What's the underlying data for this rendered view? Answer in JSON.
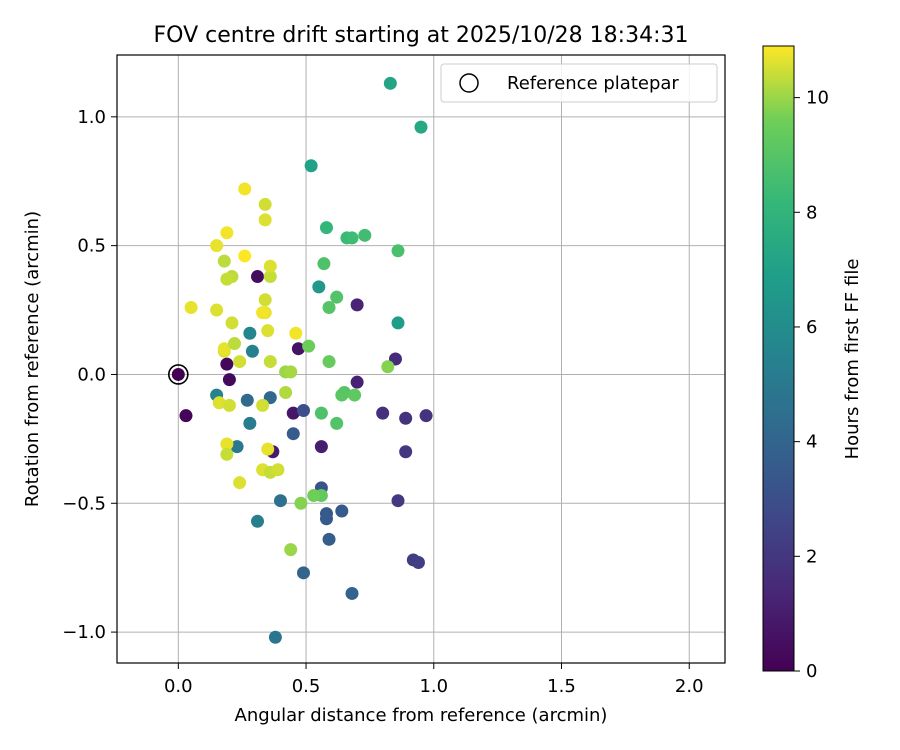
{
  "chart_data": {
    "type": "scatter",
    "title": "FOV centre drift starting at 2025/10/28 18:34:31",
    "xlabel": "Angular distance from reference (arcmin)",
    "ylabel": "Rotation from reference (arcmin)",
    "xlim": [
      -0.24,
      2.14
    ],
    "ylim": [
      -1.12,
      1.24
    ],
    "xticks": [
      0.0,
      0.5,
      1.0,
      1.5,
      2.0
    ],
    "xtick_labels": [
      "0.0",
      "0.5",
      "1.0",
      "1.5",
      "2.0"
    ],
    "yticks": [
      -1.0,
      -0.5,
      0.0,
      0.5,
      1.0
    ],
    "ytick_labels": [
      "−1.0",
      "−0.5",
      "0.0",
      "0.5",
      "1.0"
    ],
    "grid": true,
    "legend": {
      "position": "top-right",
      "entries": [
        "Reference platepar"
      ]
    },
    "reference_point": {
      "x": 0.0,
      "y": 0.0,
      "label": "Reference platepar"
    },
    "colorbar": {
      "label": "Hours from first FF file",
      "min": 0,
      "max": 10.9,
      "ticks": [
        0,
        2,
        4,
        6,
        8,
        10
      ],
      "tick_labels": [
        "0",
        "2",
        "4",
        "6",
        "8",
        "10"
      ],
      "colormap": "viridis"
    },
    "series": [
      {
        "name": "FF files",
        "points": [
          {
            "x": 0.0,
            "y": 0.0,
            "hours": 0.0
          },
          {
            "x": 0.03,
            "y": -0.16,
            "hours": 0.1
          },
          {
            "x": 0.19,
            "y": 0.04,
            "hours": 0.2
          },
          {
            "x": 0.2,
            "y": -0.02,
            "hours": 0.3
          },
          {
            "x": 0.31,
            "y": 0.38,
            "hours": 0.4
          },
          {
            "x": 0.47,
            "y": 0.1,
            "hours": 0.6
          },
          {
            "x": 0.45,
            "y": -0.15,
            "hours": 0.8
          },
          {
            "x": 0.37,
            "y": -0.3,
            "hours": 0.9
          },
          {
            "x": 0.56,
            "y": -0.28,
            "hours": 1.0
          },
          {
            "x": 0.7,
            "y": -0.03,
            "hours": 1.2
          },
          {
            "x": 0.7,
            "y": 0.27,
            "hours": 1.3
          },
          {
            "x": 0.85,
            "y": 0.06,
            "hours": 1.5
          },
          {
            "x": 0.8,
            "y": -0.15,
            "hours": 1.7
          },
          {
            "x": 0.89,
            "y": -0.17,
            "hours": 1.8
          },
          {
            "x": 0.97,
            "y": -0.16,
            "hours": 1.9
          },
          {
            "x": 0.89,
            "y": -0.3,
            "hours": 2.0
          },
          {
            "x": 0.86,
            "y": -0.49,
            "hours": 2.1
          },
          {
            "x": 0.92,
            "y": -0.72,
            "hours": 2.2
          },
          {
            "x": 0.94,
            "y": -0.73,
            "hours": 2.3
          },
          {
            "x": 0.49,
            "y": -0.14,
            "hours": 3.0
          },
          {
            "x": 0.56,
            "y": -0.44,
            "hours": 3.2
          },
          {
            "x": 0.58,
            "y": -0.54,
            "hours": 3.4
          },
          {
            "x": 0.58,
            "y": -0.56,
            "hours": 3.5
          },
          {
            "x": 0.64,
            "y": -0.53,
            "hours": 3.5
          },
          {
            "x": 0.45,
            "y": -0.23,
            "hours": 3.6
          },
          {
            "x": 0.59,
            "y": -0.64,
            "hours": 3.7
          },
          {
            "x": 0.68,
            "y": -0.85,
            "hours": 3.9
          },
          {
            "x": 0.49,
            "y": -0.77,
            "hours": 4.0
          },
          {
            "x": 0.36,
            "y": -0.09,
            "hours": 4.2
          },
          {
            "x": 0.27,
            "y": -0.1,
            "hours": 4.3
          },
          {
            "x": 0.4,
            "y": -0.49,
            "hours": 4.6
          },
          {
            "x": 0.38,
            "y": -1.02,
            "hours": 4.8
          },
          {
            "x": 0.23,
            "y": -0.28,
            "hours": 4.9
          },
          {
            "x": 0.28,
            "y": -0.19,
            "hours": 5.1
          },
          {
            "x": 0.31,
            "y": -0.57,
            "hours": 5.3
          },
          {
            "x": 0.29,
            "y": 0.09,
            "hours": 5.4
          },
          {
            "x": 0.15,
            "y": -0.08,
            "hours": 5.5
          },
          {
            "x": 0.28,
            "y": 0.16,
            "hours": 5.6
          },
          {
            "x": 0.55,
            "y": 0.34,
            "hours": 6.6
          },
          {
            "x": 0.86,
            "y": 0.2,
            "hours": 6.8
          },
          {
            "x": 0.52,
            "y": 0.81,
            "hours": 7.0
          },
          {
            "x": 0.83,
            "y": 1.13,
            "hours": 7.2
          },
          {
            "x": 0.95,
            "y": 0.96,
            "hours": 7.4
          },
          {
            "x": 0.58,
            "y": 0.57,
            "hours": 8.1
          },
          {
            "x": 0.66,
            "y": 0.53,
            "hours": 8.3
          },
          {
            "x": 0.68,
            "y": 0.53,
            "hours": 8.4
          },
          {
            "x": 0.73,
            "y": 0.54,
            "hours": 8.5
          },
          {
            "x": 0.86,
            "y": 0.48,
            "hours": 8.7
          },
          {
            "x": 0.57,
            "y": 0.43,
            "hours": 8.8
          },
          {
            "x": 0.62,
            "y": 0.3,
            "hours": 8.9
          },
          {
            "x": 0.59,
            "y": 0.26,
            "hours": 9.0
          },
          {
            "x": 0.56,
            "y": -0.15,
            "hours": 8.8
          },
          {
            "x": 0.62,
            "y": -0.19,
            "hours": 8.9
          },
          {
            "x": 0.65,
            "y": -0.07,
            "hours": 9.0
          },
          {
            "x": 0.64,
            "y": -0.08,
            "hours": 9.1
          },
          {
            "x": 0.69,
            "y": -0.08,
            "hours": 9.2
          },
          {
            "x": 0.59,
            "y": 0.05,
            "hours": 9.4
          },
          {
            "x": 0.51,
            "y": 0.11,
            "hours": 9.5
          },
          {
            "x": 0.56,
            "y": -0.47,
            "hours": 9.3
          },
          {
            "x": 0.53,
            "y": -0.47,
            "hours": 9.6
          },
          {
            "x": 0.48,
            "y": -0.5,
            "hours": 9.8
          },
          {
            "x": 0.82,
            "y": 0.03,
            "hours": 9.8
          },
          {
            "x": 0.44,
            "y": -0.68,
            "hours": 10.0
          },
          {
            "x": 0.42,
            "y": 0.01,
            "hours": 10.0
          },
          {
            "x": 0.44,
            "y": 0.01,
            "hours": 10.1
          },
          {
            "x": 0.42,
            "y": -0.07,
            "hours": 10.2
          },
          {
            "x": 0.36,
            "y": 0.05,
            "hours": 10.4
          },
          {
            "x": 0.24,
            "y": 0.05,
            "hours": 10.5
          },
          {
            "x": 0.18,
            "y": 0.09,
            "hours": 10.6
          },
          {
            "x": 0.18,
            "y": 0.1,
            "hours": 10.7
          },
          {
            "x": 0.22,
            "y": 0.12,
            "hours": 10.3
          },
          {
            "x": 0.16,
            "y": -0.11,
            "hours": 10.6
          },
          {
            "x": 0.2,
            "y": -0.12,
            "hours": 10.5
          },
          {
            "x": 0.19,
            "y": -0.27,
            "hours": 10.7
          },
          {
            "x": 0.19,
            "y": -0.31,
            "hours": 10.4
          },
          {
            "x": 0.24,
            "y": -0.42,
            "hours": 10.6
          },
          {
            "x": 0.33,
            "y": -0.12,
            "hours": 10.5
          },
          {
            "x": 0.35,
            "y": -0.29,
            "hours": 10.7
          },
          {
            "x": 0.33,
            "y": -0.37,
            "hours": 10.6
          },
          {
            "x": 0.36,
            "y": -0.38,
            "hours": 10.4
          },
          {
            "x": 0.39,
            "y": -0.37,
            "hours": 10.5
          },
          {
            "x": 0.46,
            "y": 0.16,
            "hours": 10.8
          },
          {
            "x": 0.35,
            "y": 0.17,
            "hours": 10.6
          },
          {
            "x": 0.34,
            "y": 0.24,
            "hours": 10.7
          },
          {
            "x": 0.33,
            "y": 0.24,
            "hours": 10.8
          },
          {
            "x": 0.34,
            "y": 0.29,
            "hours": 10.5
          },
          {
            "x": 0.36,
            "y": 0.38,
            "hours": 10.4
          },
          {
            "x": 0.36,
            "y": 0.42,
            "hours": 10.6
          },
          {
            "x": 0.21,
            "y": 0.38,
            "hours": 10.3
          },
          {
            "x": 0.19,
            "y": 0.37,
            "hours": 10.4
          },
          {
            "x": 0.21,
            "y": 0.2,
            "hours": 10.5
          },
          {
            "x": 0.15,
            "y": 0.25,
            "hours": 10.6
          },
          {
            "x": 0.05,
            "y": 0.26,
            "hours": 10.7
          },
          {
            "x": 0.18,
            "y": 0.44,
            "hours": 10.3
          },
          {
            "x": 0.15,
            "y": 0.5,
            "hours": 10.7
          },
          {
            "x": 0.19,
            "y": 0.55,
            "hours": 10.8
          },
          {
            "x": 0.26,
            "y": 0.46,
            "hours": 10.9
          },
          {
            "x": 0.34,
            "y": 0.6,
            "hours": 10.6
          },
          {
            "x": 0.34,
            "y": 0.66,
            "hours": 10.5
          },
          {
            "x": 0.26,
            "y": 0.72,
            "hours": 10.8
          }
        ]
      }
    ]
  }
}
